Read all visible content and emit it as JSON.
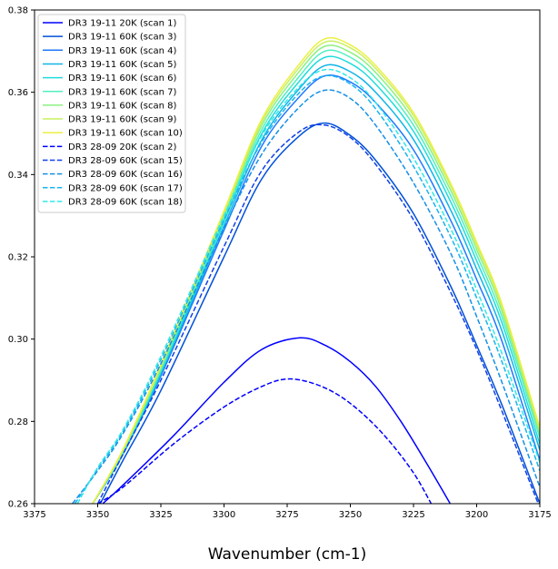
{
  "chart_data": {
    "type": "line",
    "title": "",
    "xlabel": "Wavenumber (cm-1)",
    "ylabel": "",
    "xlim": [
      3375,
      3175
    ],
    "ylim": [
      0.26,
      0.38
    ],
    "x_reversed": true,
    "grid": false,
    "legend_position": "top-left",
    "x_ticks": [
      3375,
      3350,
      3325,
      3300,
      3275,
      3250,
      3225,
      3200,
      3175
    ],
    "y_ticks": [
      0.26,
      0.28,
      0.3,
      0.32,
      0.34,
      0.36,
      0.38
    ],
    "x_tick_labels": [
      "3375",
      "3350",
      "3325",
      "3300",
      "3275",
      "3250",
      "3225",
      "3200",
      "3175"
    ],
    "y_tick_labels": [
      "0.26",
      "0.28",
      "0.30",
      "0.32",
      "0.34",
      "0.36",
      "0.38"
    ],
    "series": [
      {
        "name": "DR3 19-11 20K (scan 1)",
        "color": "#0000ff",
        "dash": "solid",
        "points": [
          [
            3348,
            0.26
          ],
          [
            3340,
            0.2645
          ],
          [
            3320,
            0.2765
          ],
          [
            3300,
            0.2895
          ],
          [
            3285,
            0.2975
          ],
          [
            3270,
            0.3003
          ],
          [
            3260,
            0.2985
          ],
          [
            3250,
            0.2945
          ],
          [
            3240,
            0.2885
          ],
          [
            3230,
            0.28
          ],
          [
            3220,
            0.27
          ],
          [
            3210,
            0.2595
          ]
        ]
      },
      {
        "name": "DR3 19-11 60K (scan 3)",
        "color": "#0050d8",
        "dash": "solid",
        "points": [
          [
            3349,
            0.26
          ],
          [
            3340,
            0.2705
          ],
          [
            3325,
            0.2875
          ],
          [
            3300,
            0.32
          ],
          [
            3285,
            0.339
          ],
          [
            3270,
            0.3495
          ],
          [
            3260,
            0.3525
          ],
          [
            3250,
            0.3495
          ],
          [
            3240,
            0.3435
          ],
          [
            3225,
            0.3305
          ],
          [
            3210,
            0.3125
          ],
          [
            3200,
            0.2985
          ],
          [
            3190,
            0.284
          ],
          [
            3175,
            0.26
          ]
        ]
      },
      {
        "name": "DR3 19-11 60K (scan 4)",
        "color": "#1e78ff",
        "dash": "solid",
        "points": [
          [
            3352,
            0.26
          ],
          [
            3340,
            0.272
          ],
          [
            3325,
            0.291
          ],
          [
            3300,
            0.3265
          ],
          [
            3285,
            0.347
          ],
          [
            3270,
            0.359
          ],
          [
            3260,
            0.364
          ],
          [
            3250,
            0.3625
          ],
          [
            3240,
            0.3575
          ],
          [
            3225,
            0.346
          ],
          [
            3210,
            0.3285
          ],
          [
            3200,
            0.3145
          ],
          [
            3190,
            0.2995
          ],
          [
            3175,
            0.2705
          ]
        ]
      },
      {
        "name": "DR3 19-11 60K (scan 5)",
        "color": "#10b4e8",
        "dash": "solid",
        "points": [
          [
            3352,
            0.26
          ],
          [
            3340,
            0.2722
          ],
          [
            3325,
            0.2915
          ],
          [
            3300,
            0.3275
          ],
          [
            3285,
            0.3485
          ],
          [
            3270,
            0.361
          ],
          [
            3260,
            0.3665
          ],
          [
            3250,
            0.365
          ],
          [
            3240,
            0.36
          ],
          [
            3225,
            0.3485
          ],
          [
            3210,
            0.331
          ],
          [
            3200,
            0.317
          ],
          [
            3190,
            0.302
          ],
          [
            3175,
            0.273
          ]
        ]
      },
      {
        "name": "DR3 19-11 60K (scan 6)",
        "color": "#20dcdc",
        "dash": "solid",
        "points": [
          [
            3352,
            0.26
          ],
          [
            3340,
            0.2724
          ],
          [
            3325,
            0.292
          ],
          [
            3300,
            0.3285
          ],
          [
            3285,
            0.35
          ],
          [
            3270,
            0.3628
          ],
          [
            3260,
            0.3685
          ],
          [
            3250,
            0.367
          ],
          [
            3240,
            0.362
          ],
          [
            3225,
            0.3505
          ],
          [
            3210,
            0.333
          ],
          [
            3200,
            0.319
          ],
          [
            3190,
            0.304
          ],
          [
            3175,
            0.2745
          ]
        ]
      },
      {
        "name": "DR3 19-11 60K (scan 7)",
        "color": "#50f0c0",
        "dash": "solid",
        "points": [
          [
            3352,
            0.26
          ],
          [
            3340,
            0.2726
          ],
          [
            3325,
            0.2925
          ],
          [
            3300,
            0.3292
          ],
          [
            3285,
            0.351
          ],
          [
            3270,
            0.364
          ],
          [
            3260,
            0.37
          ],
          [
            3250,
            0.3685
          ],
          [
            3240,
            0.3635
          ],
          [
            3225,
            0.352
          ],
          [
            3210,
            0.3345
          ],
          [
            3200,
            0.3205
          ],
          [
            3190,
            0.3055
          ],
          [
            3175,
            0.276
          ]
        ]
      },
      {
        "name": "DR3 19-11 60K (scan 8)",
        "color": "#8cf080",
        "dash": "solid",
        "points": [
          [
            3352,
            0.26
          ],
          [
            3340,
            0.2728
          ],
          [
            3325,
            0.293
          ],
          [
            3300,
            0.33
          ],
          [
            3285,
            0.352
          ],
          [
            3270,
            0.3652
          ],
          [
            3260,
            0.3712
          ],
          [
            3250,
            0.3697
          ],
          [
            3240,
            0.3648
          ],
          [
            3225,
            0.3533
          ],
          [
            3210,
            0.3358
          ],
          [
            3200,
            0.3218
          ],
          [
            3190,
            0.3068
          ],
          [
            3175,
            0.277
          ]
        ]
      },
      {
        "name": "DR3 19-11 60K (scan 9)",
        "color": "#c8f060",
        "dash": "solid",
        "points": [
          [
            3352,
            0.26
          ],
          [
            3340,
            0.273
          ],
          [
            3325,
            0.2934
          ],
          [
            3300,
            0.3306
          ],
          [
            3285,
            0.3528
          ],
          [
            3270,
            0.3662
          ],
          [
            3260,
            0.3722
          ],
          [
            3250,
            0.3708
          ],
          [
            3240,
            0.3658
          ],
          [
            3225,
            0.3543
          ],
          [
            3210,
            0.3368
          ],
          [
            3200,
            0.3228
          ],
          [
            3190,
            0.3078
          ],
          [
            3175,
            0.2778
          ]
        ]
      },
      {
        "name": "DR3 19-11 60K (scan 10)",
        "color": "#ecf040",
        "dash": "solid",
        "points": [
          [
            3352,
            0.26
          ],
          [
            3340,
            0.2732
          ],
          [
            3325,
            0.2938
          ],
          [
            3300,
            0.3312
          ],
          [
            3285,
            0.3535
          ],
          [
            3270,
            0.367
          ],
          [
            3260,
            0.373
          ],
          [
            3250,
            0.3715
          ],
          [
            3240,
            0.3665
          ],
          [
            3225,
            0.355
          ],
          [
            3210,
            0.3375
          ],
          [
            3200,
            0.3235
          ],
          [
            3190,
            0.3085
          ],
          [
            3175,
            0.2785
          ]
        ]
      },
      {
        "name": "DR3 28-09 20K (scan 2)",
        "color": "#0000ff",
        "dash": "dashed",
        "points": [
          [
            3350,
            0.26
          ],
          [
            3340,
            0.264
          ],
          [
            3320,
            0.2745
          ],
          [
            3300,
            0.2835
          ],
          [
            3285,
            0.2885
          ],
          [
            3275,
            0.2903
          ],
          [
            3265,
            0.2893
          ],
          [
            3255,
            0.2865
          ],
          [
            3245,
            0.2818
          ],
          [
            3235,
            0.2755
          ],
          [
            3225,
            0.2675
          ],
          [
            3218,
            0.26
          ]
        ]
      },
      {
        "name": "DR3 28-09 60K (scan 15)",
        "color": "#1040e8",
        "dash": "dashed",
        "points": [
          [
            3350,
            0.26
          ],
          [
            3340,
            0.272
          ],
          [
            3325,
            0.29
          ],
          [
            3300,
            0.3225
          ],
          [
            3285,
            0.341
          ],
          [
            3270,
            0.3505
          ],
          [
            3260,
            0.352
          ],
          [
            3250,
            0.349
          ],
          [
            3240,
            0.3425
          ],
          [
            3225,
            0.329
          ],
          [
            3210,
            0.311
          ],
          [
            3200,
            0.2975
          ],
          [
            3190,
            0.2825
          ],
          [
            3175,
            0.259
          ]
        ]
      },
      {
        "name": "DR3 28-09 60K (scan 16)",
        "color": "#1490e8",
        "dash": "dashed",
        "points": [
          [
            3360,
            0.26
          ],
          [
            3350,
            0.268
          ],
          [
            3340,
            0.277
          ],
          [
            3325,
            0.294
          ],
          [
            3300,
            0.327
          ],
          [
            3285,
            0.345
          ],
          [
            3270,
            0.3565
          ],
          [
            3260,
            0.3605
          ],
          [
            3250,
            0.3585
          ],
          [
            3240,
            0.352
          ],
          [
            3225,
            0.338
          ],
          [
            3210,
            0.3205
          ],
          [
            3200,
            0.3055
          ],
          [
            3190,
            0.2895
          ],
          [
            3175,
            0.264
          ]
        ]
      },
      {
        "name": "DR3 28-09 60K (scan 17)",
        "color": "#18b4f0",
        "dash": "dashed",
        "points": [
          [
            3359,
            0.26
          ],
          [
            3350,
            0.2685
          ],
          [
            3340,
            0.2775
          ],
          [
            3325,
            0.295
          ],
          [
            3300,
            0.329
          ],
          [
            3285,
            0.348
          ],
          [
            3270,
            0.36
          ],
          [
            3260,
            0.364
          ],
          [
            3250,
            0.362
          ],
          [
            3240,
            0.356
          ],
          [
            3225,
            0.342
          ],
          [
            3210,
            0.3245
          ],
          [
            3200,
            0.31
          ],
          [
            3190,
            0.2945
          ],
          [
            3175,
            0.268
          ]
        ]
      },
      {
        "name": "DR3 28-09 60K (scan 18)",
        "color": "#30e8e8",
        "dash": "dashed",
        "points": [
          [
            3358,
            0.26
          ],
          [
            3350,
            0.2688
          ],
          [
            3340,
            0.278
          ],
          [
            3325,
            0.2958
          ],
          [
            3300,
            0.33
          ],
          [
            3285,
            0.3495
          ],
          [
            3270,
            0.3615
          ],
          [
            3260,
            0.3655
          ],
          [
            3250,
            0.3635
          ],
          [
            3240,
            0.3575
          ],
          [
            3225,
            0.344
          ],
          [
            3210,
            0.3265
          ],
          [
            3200,
            0.312
          ],
          [
            3190,
            0.2965
          ],
          [
            3175,
            0.27
          ]
        ]
      }
    ]
  }
}
